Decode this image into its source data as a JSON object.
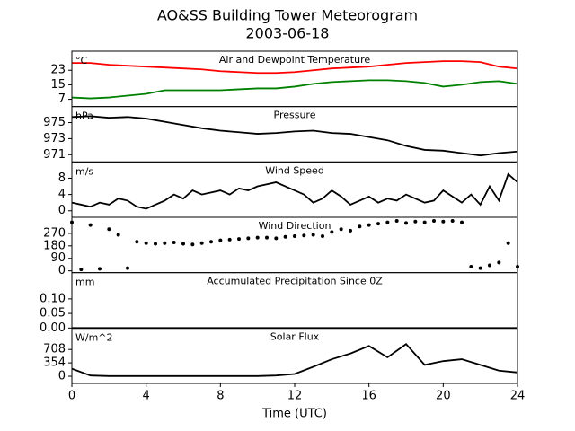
{
  "title": "AO&SS Building Tower Meteorogram",
  "subtitle": "2003-06-18",
  "chart_data": [
    {
      "type": "line",
      "title": "Air and Dewpoint Temperature",
      "ylabel": "°C",
      "x": [
        0,
        1,
        2,
        3,
        4,
        5,
        6,
        7,
        8,
        9,
        10,
        11,
        12,
        13,
        14,
        15,
        16,
        17,
        18,
        19,
        20,
        21,
        22,
        23,
        24
      ],
      "series": [
        {
          "color": "#ff0000",
          "values": [
            27,
            27,
            26,
            25.5,
            25,
            24.5,
            24,
            23.5,
            22.5,
            22,
            21.5,
            21.5,
            22,
            23,
            24,
            24.5,
            25,
            26,
            27,
            27.5,
            28,
            28,
            27.5,
            25,
            24
          ]
        },
        {
          "color": "#008000",
          "values": [
            8,
            7.5,
            8,
            9,
            10,
            12,
            12,
            12,
            12,
            12.5,
            13,
            13,
            14,
            15.5,
            16.5,
            17,
            17.5,
            17.5,
            17,
            16,
            14,
            15,
            16.5,
            17,
            15.5
          ]
        }
      ],
      "xlim": [
        0,
        24
      ],
      "ylim": [
        3,
        33.5
      ],
      "yticks": [
        7,
        15,
        23
      ]
    },
    {
      "type": "line",
      "title": "Pressure",
      "ylabel": "hPa",
      "x": [
        0,
        1,
        2,
        3,
        4,
        5,
        6,
        7,
        8,
        9,
        10,
        11,
        12,
        13,
        14,
        15,
        16,
        17,
        18,
        19,
        20,
        21,
        22,
        23,
        24
      ],
      "series": [
        {
          "color": "#000000",
          "values": [
            975.7,
            975.8,
            975.6,
            975.7,
            975.5,
            975.1,
            974.7,
            974.3,
            974.0,
            973.8,
            973.6,
            973.7,
            973.9,
            974.0,
            973.7,
            973.6,
            973.2,
            972.8,
            972.1,
            971.6,
            971.5,
            971.2,
            970.9,
            971.2,
            971.4
          ]
        }
      ],
      "xlim": [
        0,
        24
      ],
      "ylim": [
        970.1,
        977
      ],
      "yticks": [
        971,
        973,
        975
      ]
    },
    {
      "type": "line",
      "title": "Wind Speed",
      "ylabel": "m/s",
      "x": [
        0,
        0.5,
        1,
        1.5,
        2,
        2.5,
        3,
        3.5,
        4,
        4.5,
        5,
        5.5,
        6,
        6.5,
        7,
        7.5,
        8,
        8.5,
        9,
        9.5,
        10,
        10.5,
        11,
        11.5,
        12,
        12.5,
        13,
        13.5,
        14,
        14.5,
        15,
        15.5,
        16,
        16.5,
        17,
        17.5,
        18,
        18.5,
        19,
        19.5,
        20,
        20.5,
        21,
        21.5,
        22,
        22.5,
        23,
        23.5,
        24
      ],
      "series": [
        {
          "color": "#000000",
          "values": [
            2,
            1.5,
            1,
            2,
            1.5,
            3,
            2.5,
            1,
            0.5,
            1.5,
            2.5,
            4,
            3,
            5,
            4,
            4.5,
            5,
            4,
            5.5,
            5,
            6,
            6.5,
            7,
            6,
            5,
            4,
            2,
            3,
            5,
            3.5,
            1.5,
            2.5,
            3.5,
            2,
            3,
            2.5,
            4,
            3,
            2,
            2.5,
            5,
            3.5,
            2,
            4,
            1.5,
            6,
            2.5,
            9,
            7
          ]
        }
      ],
      "xlim": [
        0,
        24
      ],
      "ylim": [
        -1.6,
        12
      ],
      "yticks": [
        0,
        4,
        8
      ]
    },
    {
      "type": "scatter",
      "title": "Wind Direction",
      "x": [
        0,
        0.5,
        1,
        1.5,
        2,
        2.5,
        3,
        3.5,
        4,
        4.5,
        5,
        5.5,
        6,
        6.5,
        7,
        7.5,
        8,
        8.5,
        9,
        9.5,
        10,
        10.5,
        11,
        11.5,
        12,
        12.5,
        13,
        13.5,
        14,
        14.5,
        15,
        15.5,
        16,
        16.5,
        17,
        17.5,
        18,
        18.5,
        19,
        19.5,
        20,
        20.5,
        21,
        21.5,
        22,
        22.5,
        23,
        23.5,
        24
      ],
      "series": [
        {
          "color": "#000000",
          "values": [
            350,
            10,
            330,
            15,
            300,
            260,
            20,
            210,
            200,
            195,
            200,
            205,
            195,
            190,
            200,
            210,
            220,
            225,
            230,
            235,
            240,
            240,
            235,
            245,
            250,
            255,
            260,
            250,
            280,
            300,
            290,
            320,
            330,
            340,
            350,
            360,
            345,
            355,
            350,
            360,
            355,
            360,
            350,
            30,
            20,
            40,
            60,
            200,
            30
          ]
        }
      ],
      "xlim": [
        0,
        24
      ],
      "ylim": [
        -13,
        386
      ],
      "yticks": [
        0,
        90,
        180,
        270
      ]
    },
    {
      "type": "line",
      "title": "Accumulated Precipitation Since 0Z",
      "ylabel": "mm",
      "x": [
        0,
        1,
        2,
        3,
        4,
        5,
        6,
        7,
        8,
        9,
        10,
        11,
        12,
        13,
        14,
        15,
        16,
        17,
        18,
        19,
        20,
        21,
        22,
        23,
        24
      ],
      "series": [
        {
          "color": "#000000",
          "values": [
            0,
            0,
            0,
            0,
            0,
            0,
            0,
            0,
            0,
            0,
            0,
            0,
            0,
            0,
            0,
            0,
            0,
            0,
            0,
            0,
            0,
            0,
            0,
            0,
            0
          ]
        }
      ],
      "xlim": [
        0,
        24
      ],
      "ylim": [
        0,
        0.19
      ],
      "yticks": [
        {
          "value": 0,
          "label": "0.00"
        },
        {
          "value": 0.05,
          "label": "0.05"
        },
        {
          "value": 0.1,
          "label": "0.10"
        }
      ]
    },
    {
      "type": "line",
      "title": "Solar Flux",
      "ylabel": "W/m^2",
      "xlabel": "Time (UTC)",
      "x": [
        0,
        1,
        2,
        3,
        4,
        5,
        6,
        7,
        8,
        9,
        10,
        11,
        12,
        13,
        14,
        15,
        16,
        17,
        18,
        19,
        20,
        21,
        22,
        23,
        24
      ],
      "series": [
        {
          "color": "#000000",
          "values": [
            200,
            20,
            5,
            5,
            5,
            5,
            5,
            5,
            5,
            5,
            5,
            20,
            60,
            250,
            450,
            600,
            800,
            500,
            850,
            300,
            400,
            450,
            300,
            150,
            100
          ]
        }
      ],
      "xlim": [
        0,
        24
      ],
      "ylim": [
        -189,
        1274
      ],
      "yticks": [
        0,
        354,
        708
      ],
      "xticks": [
        0,
        4,
        8,
        12,
        16,
        20,
        24
      ]
    }
  ]
}
